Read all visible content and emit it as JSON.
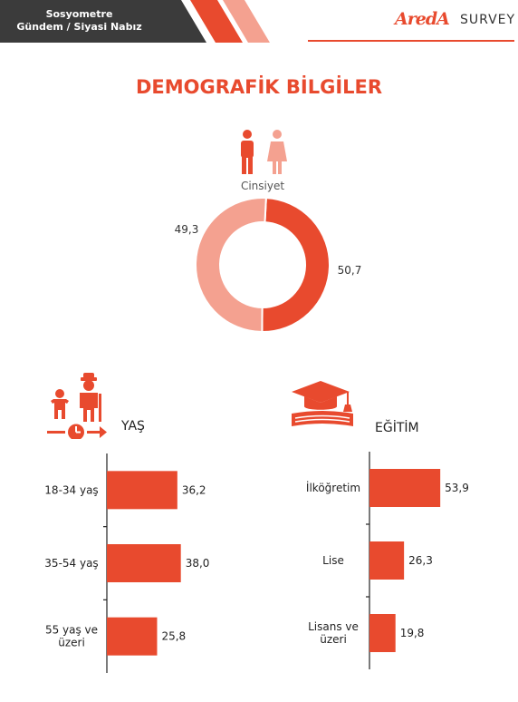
{
  "header": {
    "line1": "Sosyometre",
    "line2": "Gündem / Siyasi Nabız",
    "brand_name": "AredA",
    "brand_suffix": "SURVEY"
  },
  "page_title": "DEMOGRAFİK BİLGİLER",
  "colors": {
    "accent": "#e84a2e",
    "light": "#f4a190",
    "dark_band": "#3b3b3b"
  },
  "icons": {
    "gender": "male-female-icon",
    "age": "child-elder-clock-icon",
    "education": "graduation-cap-book-icon"
  },
  "chart_data": [
    {
      "type": "pie",
      "variant": "donut",
      "title": "Cinsiyet",
      "slices": [
        {
          "value": 49.3,
          "label": "49,3",
          "color": "#e84a2e"
        },
        {
          "value": 50.7,
          "label": "50,7",
          "color": "#f4a190"
        }
      ]
    },
    {
      "type": "bar",
      "orientation": "horizontal",
      "title": "YAŞ",
      "categories": [
        "18-34 yaş",
        "35-54 yaş",
        "55 yaş ve üzeri"
      ],
      "values": [
        36.2,
        38.0,
        25.8
      ],
      "value_labels": [
        "36,2",
        "38,0",
        "25,8"
      ],
      "color": "#e84a2e"
    },
    {
      "type": "bar",
      "orientation": "horizontal",
      "title": "EĞİTİM",
      "categories": [
        "İlköğretim",
        "Lise",
        "Lisans ve üzeri"
      ],
      "values": [
        53.9,
        26.3,
        19.8
      ],
      "value_labels": [
        "53,9",
        "26,3",
        "19,8"
      ],
      "color": "#e84a2e"
    }
  ]
}
